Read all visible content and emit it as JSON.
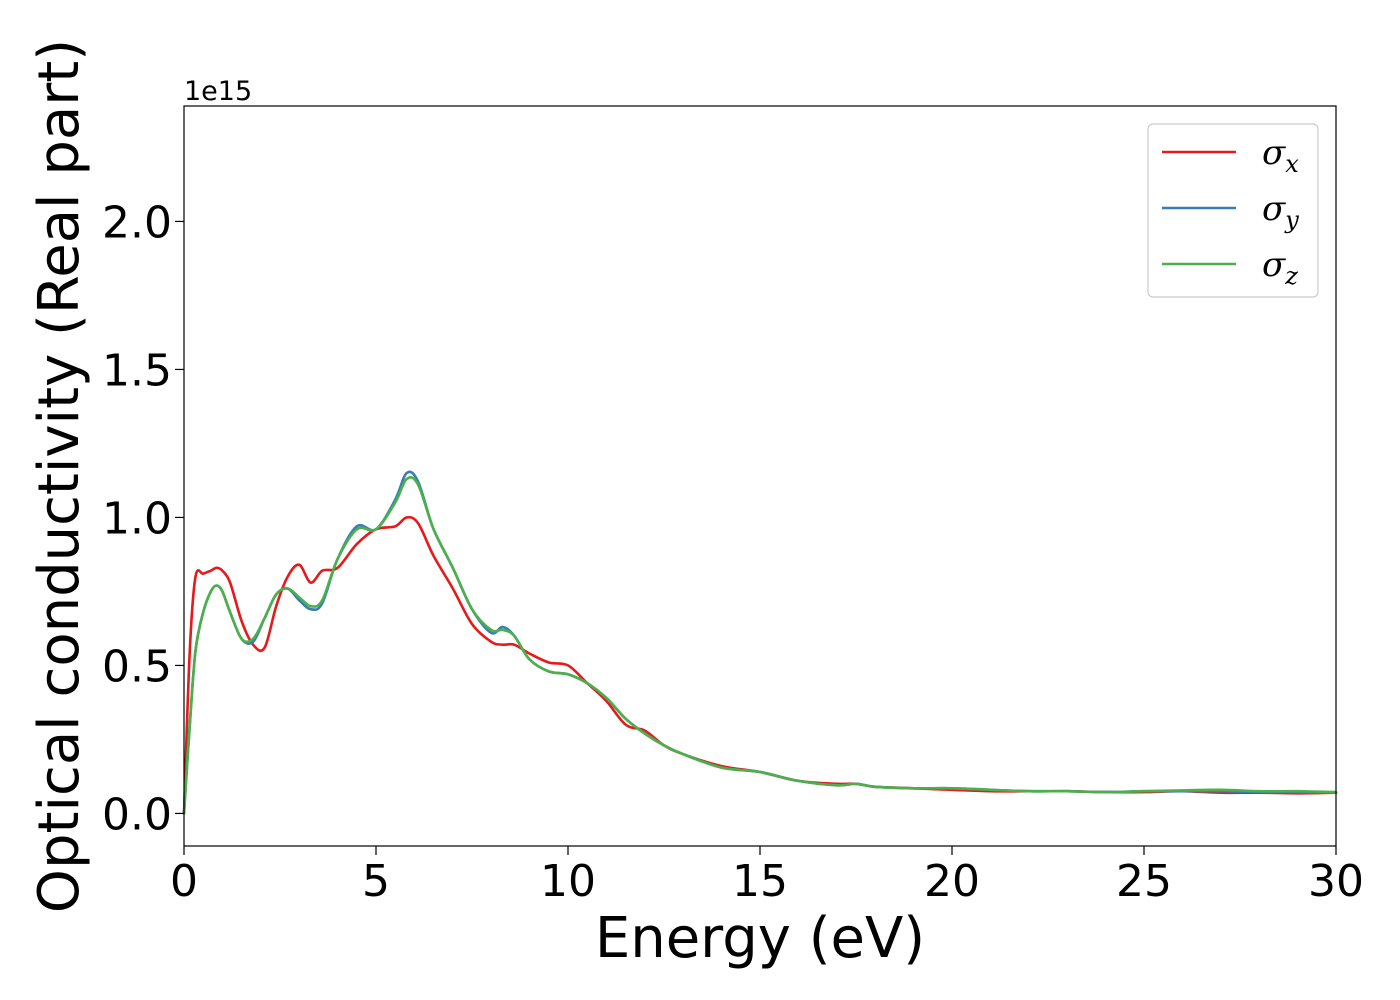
{
  "chart_data": {
    "type": "line",
    "title": "",
    "xlabel": "Energy (eV)",
    "ylabel": "Optical conductivity (Real part)",
    "y_offset_label": "1e15",
    "xlim": [
      0,
      30
    ],
    "ylim": [
      -0.11,
      2.39
    ],
    "x_ticks": [
      0,
      5,
      10,
      15,
      20,
      25,
      30
    ],
    "x_tick_labels": [
      "0",
      "5",
      "10",
      "15",
      "20",
      "25",
      "30"
    ],
    "y_ticks": [
      0.0,
      0.5,
      1.0,
      1.5,
      2.0
    ],
    "y_tick_labels": [
      "0.0",
      "0.5",
      "1.0",
      "1.5",
      "2.0"
    ],
    "grid": false,
    "legend": {
      "position": "top-right"
    },
    "x": [
      0,
      0.15,
      0.3,
      0.5,
      0.7,
      0.85,
      1.0,
      1.2,
      1.5,
      1.8,
      2.1,
      2.4,
      2.7,
      3.0,
      3.3,
      3.6,
      4.0,
      4.5,
      5.0,
      5.5,
      5.8,
      6.1,
      6.5,
      7.0,
      7.5,
      8.0,
      8.3,
      8.6,
      9.0,
      9.5,
      10.0,
      10.5,
      11.0,
      11.5,
      12.0,
      12.5,
      13.0,
      14.0,
      15.0,
      16.0,
      17.0,
      17.5,
      18.0,
      19.0,
      20.0,
      21.0,
      22.0,
      23.0,
      24.0,
      25.0,
      26.0,
      27.0,
      28.0,
      29.0,
      30.0
    ],
    "series": [
      {
        "name": "σx",
        "label_base": "σ",
        "label_sub": "x",
        "color": "#e41a1c",
        "values": [
          0.0,
          0.55,
          0.8,
          0.81,
          0.82,
          0.83,
          0.82,
          0.78,
          0.65,
          0.57,
          0.56,
          0.7,
          0.8,
          0.84,
          0.78,
          0.82,
          0.83,
          0.91,
          0.96,
          0.97,
          1.0,
          0.98,
          0.87,
          0.76,
          0.64,
          0.58,
          0.57,
          0.57,
          0.54,
          0.51,
          0.5,
          0.44,
          0.38,
          0.3,
          0.28,
          0.23,
          0.2,
          0.16,
          0.14,
          0.11,
          0.1,
          0.1,
          0.09,
          0.085,
          0.08,
          0.075,
          0.075,
          0.075,
          0.072,
          0.072,
          0.075,
          0.07,
          0.07,
          0.068,
          0.07
        ]
      },
      {
        "name": "σy",
        "label_base": "σ",
        "label_sub": "y",
        "color": "#377eb8",
        "values": [
          0.0,
          0.3,
          0.55,
          0.68,
          0.75,
          0.77,
          0.75,
          0.68,
          0.59,
          0.58,
          0.66,
          0.74,
          0.76,
          0.72,
          0.69,
          0.71,
          0.86,
          0.97,
          0.96,
          1.06,
          1.15,
          1.12,
          0.96,
          0.83,
          0.69,
          0.61,
          0.63,
          0.6,
          0.52,
          0.48,
          0.47,
          0.44,
          0.39,
          0.32,
          0.27,
          0.23,
          0.2,
          0.155,
          0.14,
          0.11,
          0.095,
          0.1,
          0.09,
          0.085,
          0.085,
          0.08,
          0.075,
          0.075,
          0.072,
          0.075,
          0.075,
          0.075,
          0.072,
          0.072,
          0.07
        ]
      },
      {
        "name": "σz",
        "label_base": "σ",
        "label_sub": "z",
        "color": "#4daf4a",
        "values": [
          0.0,
          0.3,
          0.55,
          0.68,
          0.75,
          0.77,
          0.75,
          0.68,
          0.59,
          0.59,
          0.66,
          0.74,
          0.76,
          0.73,
          0.7,
          0.72,
          0.86,
          0.96,
          0.96,
          1.05,
          1.13,
          1.11,
          0.96,
          0.83,
          0.69,
          0.62,
          0.62,
          0.6,
          0.52,
          0.48,
          0.47,
          0.44,
          0.39,
          0.32,
          0.27,
          0.23,
          0.2,
          0.155,
          0.14,
          0.11,
          0.095,
          0.1,
          0.09,
          0.085,
          0.085,
          0.08,
          0.075,
          0.075,
          0.072,
          0.075,
          0.078,
          0.08,
          0.075,
          0.075,
          0.072
        ]
      }
    ]
  }
}
